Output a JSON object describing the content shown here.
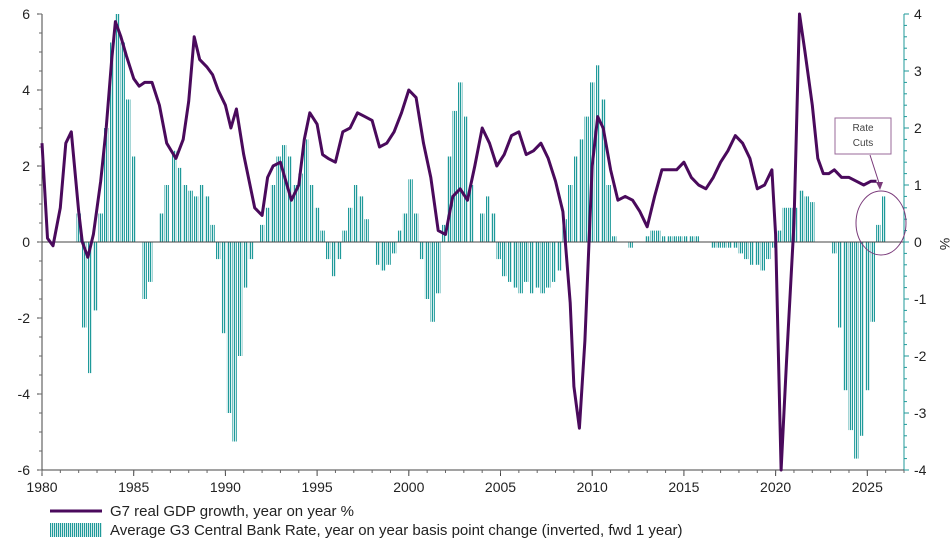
{
  "chart_data": {
    "type": "bar+line",
    "colors": {
      "gdp_line": "#4a0a5c",
      "rate_bars": "#1f9a9a",
      "annotation": "#7a3a7a"
    },
    "x_axis": {
      "range": [
        1980,
        2027
      ],
      "tick_labels": [
        "1980",
        "1985",
        "1990",
        "1995",
        "2000",
        "2005",
        "2010",
        "2015",
        "2020",
        "2025"
      ]
    },
    "y_left": {
      "range": [
        -6,
        6
      ],
      "tick_labels": [
        "-6",
        "-4",
        "-2",
        "0",
        "2",
        "4",
        "6"
      ]
    },
    "y_right": {
      "range": [
        -4,
        4
      ],
      "tick_labels": [
        "-4",
        "-3",
        "-2",
        "-1",
        "0",
        "1",
        "2",
        "3",
        "4"
      ],
      "unit_label": "%"
    },
    "grid": false,
    "legend_position": "bottom",
    "series": [
      {
        "name": "G7 real GDP growth, year on year %",
        "kind": "line",
        "axis": "left",
        "points": [
          [
            1980.0,
            2.6
          ],
          [
            1980.3,
            0.1
          ],
          [
            1980.6,
            -0.1
          ],
          [
            1981.0,
            0.9
          ],
          [
            1981.3,
            2.6
          ],
          [
            1981.6,
            2.9
          ],
          [
            1982.0,
            0.8
          ],
          [
            1982.2,
            0.0
          ],
          [
            1982.5,
            -0.4
          ],
          [
            1982.8,
            0.2
          ],
          [
            1983.2,
            1.6
          ],
          [
            1983.5,
            3.0
          ],
          [
            1983.8,
            4.8
          ],
          [
            1984.0,
            5.8
          ],
          [
            1984.3,
            5.4
          ],
          [
            1984.6,
            4.9
          ],
          [
            1985.0,
            4.3
          ],
          [
            1985.3,
            4.1
          ],
          [
            1985.6,
            4.2
          ],
          [
            1986.0,
            4.2
          ],
          [
            1986.4,
            3.6
          ],
          [
            1986.8,
            2.6
          ],
          [
            1987.3,
            2.2
          ],
          [
            1987.7,
            2.7
          ],
          [
            1988.0,
            3.7
          ],
          [
            1988.3,
            5.4
          ],
          [
            1988.6,
            4.8
          ],
          [
            1989.0,
            4.6
          ],
          [
            1989.3,
            4.4
          ],
          [
            1989.6,
            4.0
          ],
          [
            1990.0,
            3.6
          ],
          [
            1990.3,
            3.0
          ],
          [
            1990.6,
            3.5
          ],
          [
            1991.0,
            2.3
          ],
          [
            1991.3,
            1.6
          ],
          [
            1991.6,
            0.9
          ],
          [
            1992.0,
            0.7
          ],
          [
            1992.3,
            1.7
          ],
          [
            1992.6,
            2.0
          ],
          [
            1993.0,
            2.1
          ],
          [
            1993.3,
            1.6
          ],
          [
            1993.6,
            1.1
          ],
          [
            1994.0,
            1.5
          ],
          [
            1994.3,
            2.7
          ],
          [
            1994.6,
            3.4
          ],
          [
            1995.0,
            3.1
          ],
          [
            1995.3,
            2.3
          ],
          [
            1995.6,
            2.2
          ],
          [
            1996.0,
            2.1
          ],
          [
            1996.4,
            2.9
          ],
          [
            1996.8,
            3.0
          ],
          [
            1997.2,
            3.4
          ],
          [
            1997.6,
            3.3
          ],
          [
            1998.0,
            3.2
          ],
          [
            1998.4,
            2.5
          ],
          [
            1998.8,
            2.6
          ],
          [
            1999.2,
            2.9
          ],
          [
            1999.6,
            3.4
          ],
          [
            2000.0,
            4.0
          ],
          [
            2000.4,
            3.8
          ],
          [
            2000.8,
            2.6
          ],
          [
            2001.2,
            1.7
          ],
          [
            2001.6,
            0.3
          ],
          [
            2002.0,
            0.2
          ],
          [
            2002.4,
            1.2
          ],
          [
            2002.8,
            1.4
          ],
          [
            2003.2,
            1.1
          ],
          [
            2003.6,
            2.0
          ],
          [
            2004.0,
            3.0
          ],
          [
            2004.4,
            2.6
          ],
          [
            2004.8,
            2.0
          ],
          [
            2005.2,
            2.3
          ],
          [
            2005.6,
            2.8
          ],
          [
            2006.0,
            2.9
          ],
          [
            2006.4,
            2.3
          ],
          [
            2006.8,
            2.4
          ],
          [
            2007.2,
            2.6
          ],
          [
            2007.6,
            2.2
          ],
          [
            2008.0,
            1.6
          ],
          [
            2008.4,
            0.8
          ],
          [
            2008.8,
            -1.6
          ],
          [
            2009.0,
            -3.8
          ],
          [
            2009.3,
            -4.9
          ],
          [
            2009.6,
            -2.6
          ],
          [
            2010.0,
            2.0
          ],
          [
            2010.3,
            3.3
          ],
          [
            2010.6,
            3.0
          ],
          [
            2011.0,
            1.9
          ],
          [
            2011.4,
            1.1
          ],
          [
            2011.8,
            1.2
          ],
          [
            2012.2,
            1.1
          ],
          [
            2012.6,
            0.8
          ],
          [
            2013.0,
            0.4
          ],
          [
            2013.4,
            1.2
          ],
          [
            2013.8,
            1.9
          ],
          [
            2014.2,
            1.9
          ],
          [
            2014.6,
            1.9
          ],
          [
            2015.0,
            2.1
          ],
          [
            2015.4,
            1.7
          ],
          [
            2015.8,
            1.5
          ],
          [
            2016.2,
            1.4
          ],
          [
            2016.6,
            1.7
          ],
          [
            2017.0,
            2.1
          ],
          [
            2017.4,
            2.4
          ],
          [
            2017.8,
            2.8
          ],
          [
            2018.2,
            2.6
          ],
          [
            2018.6,
            2.2
          ],
          [
            2019.0,
            1.4
          ],
          [
            2019.4,
            1.5
          ],
          [
            2019.8,
            1.9
          ],
          [
            2020.0,
            0.2
          ],
          [
            2020.3,
            -6.0
          ],
          [
            2020.6,
            -3.1
          ],
          [
            2021.0,
            0.5
          ],
          [
            2021.3,
            7.0
          ],
          [
            2021.6,
            5.0
          ],
          [
            2022.0,
            3.6
          ],
          [
            2022.3,
            2.2
          ],
          [
            2022.6,
            1.8
          ],
          [
            2022.9,
            1.8
          ],
          [
            2023.2,
            1.9
          ],
          [
            2023.6,
            1.7
          ],
          [
            2024.0,
            1.7
          ],
          [
            2024.4,
            1.6
          ],
          [
            2024.8,
            1.5
          ],
          [
            2025.2,
            1.6
          ],
          [
            2025.5,
            1.6
          ]
        ]
      },
      {
        "name": "Average G3 Central Bank Rate, year on year basis point change (inverted, fwd 1 year)",
        "kind": "bar",
        "axis": "right",
        "points": [
          [
            1982.0,
            0.5
          ],
          [
            1982.3,
            -1.5
          ],
          [
            1982.6,
            -2.3
          ],
          [
            1982.9,
            -1.2
          ],
          [
            1983.2,
            0.5
          ],
          [
            1983.5,
            2.0
          ],
          [
            1983.8,
            3.5
          ],
          [
            1984.1,
            4.0
          ],
          [
            1984.4,
            3.5
          ],
          [
            1984.7,
            2.5
          ],
          [
            1985.0,
            1.5
          ],
          [
            1985.3,
            0.0
          ],
          [
            1985.6,
            -1.0
          ],
          [
            1985.9,
            -0.7
          ],
          [
            1986.2,
            0.0
          ],
          [
            1986.5,
            0.5
          ],
          [
            1986.8,
            1.0
          ],
          [
            1987.2,
            1.6
          ],
          [
            1987.5,
            1.3
          ],
          [
            1987.8,
            1.0
          ],
          [
            1988.1,
            0.9
          ],
          [
            1988.4,
            0.8
          ],
          [
            1988.7,
            1.0
          ],
          [
            1989.0,
            0.8
          ],
          [
            1989.3,
            0.3
          ],
          [
            1989.6,
            -0.3
          ],
          [
            1989.9,
            -1.6
          ],
          [
            1990.2,
            -3.0
          ],
          [
            1990.5,
            -3.5
          ],
          [
            1990.8,
            -2.0
          ],
          [
            1991.1,
            -0.8
          ],
          [
            1991.4,
            -0.3
          ],
          [
            1991.7,
            0.0
          ],
          [
            1992.0,
            0.3
          ],
          [
            1992.3,
            0.6
          ],
          [
            1992.6,
            1.0
          ],
          [
            1992.9,
            1.5
          ],
          [
            1993.2,
            1.7
          ],
          [
            1993.5,
            1.5
          ],
          [
            1993.8,
            1.0
          ],
          [
            1994.1,
            1.2
          ],
          [
            1994.4,
            1.8
          ],
          [
            1994.7,
            1.0
          ],
          [
            1995.0,
            0.6
          ],
          [
            1995.3,
            0.2
          ],
          [
            1995.6,
            -0.3
          ],
          [
            1995.9,
            -0.6
          ],
          [
            1996.2,
            -0.3
          ],
          [
            1996.5,
            0.2
          ],
          [
            1996.8,
            0.6
          ],
          [
            1997.1,
            1.0
          ],
          [
            1997.4,
            0.8
          ],
          [
            1997.7,
            0.4
          ],
          [
            1998.0,
            0.0
          ],
          [
            1998.3,
            -0.4
          ],
          [
            1998.6,
            -0.5
          ],
          [
            1998.9,
            -0.4
          ],
          [
            1999.2,
            -0.2
          ],
          [
            1999.5,
            0.2
          ],
          [
            1999.8,
            0.5
          ],
          [
            2000.1,
            1.1
          ],
          [
            2000.4,
            0.5
          ],
          [
            2000.7,
            -0.3
          ],
          [
            2001.0,
            -1.0
          ],
          [
            2001.3,
            -1.4
          ],
          [
            2001.6,
            -0.9
          ],
          [
            2001.9,
            0.3
          ],
          [
            2002.2,
            1.5
          ],
          [
            2002.5,
            2.3
          ],
          [
            2002.8,
            2.8
          ],
          [
            2003.1,
            2.2
          ],
          [
            2003.4,
            1.0
          ],
          [
            2003.7,
            0.0
          ],
          [
            2004.0,
            0.5
          ],
          [
            2004.3,
            0.8
          ],
          [
            2004.6,
            0.5
          ],
          [
            2004.9,
            -0.3
          ],
          [
            2005.2,
            -0.6
          ],
          [
            2005.5,
            -0.7
          ],
          [
            2005.8,
            -0.8
          ],
          [
            2006.1,
            -0.9
          ],
          [
            2006.4,
            -0.7
          ],
          [
            2006.7,
            -0.9
          ],
          [
            2007.0,
            -0.8
          ],
          [
            2007.3,
            -0.9
          ],
          [
            2007.6,
            -0.8
          ],
          [
            2007.9,
            -0.7
          ],
          [
            2008.2,
            -0.5
          ],
          [
            2008.5,
            0.4
          ],
          [
            2008.8,
            1.0
          ],
          [
            2009.1,
            1.5
          ],
          [
            2009.4,
            1.8
          ],
          [
            2009.7,
            2.2
          ],
          [
            2010.0,
            2.8
          ],
          [
            2010.3,
            3.1
          ],
          [
            2010.6,
            2.5
          ],
          [
            2010.9,
            1.0
          ],
          [
            2011.2,
            0.1
          ],
          [
            2011.5,
            0.0
          ],
          [
            2011.8,
            0.0
          ],
          [
            2012.1,
            -0.1
          ],
          [
            2012.4,
            0.0
          ],
          [
            2012.7,
            0.0
          ],
          [
            2013.0,
            0.1
          ],
          [
            2013.3,
            0.2
          ],
          [
            2013.6,
            0.2
          ],
          [
            2013.9,
            0.1
          ],
          [
            2014.2,
            0.1
          ],
          [
            2014.5,
            0.1
          ],
          [
            2014.8,
            0.1
          ],
          [
            2015.1,
            0.1
          ],
          [
            2015.4,
            0.1
          ],
          [
            2015.7,
            0.1
          ],
          [
            2016.0,
            0.0
          ],
          [
            2016.3,
            0.0
          ],
          [
            2016.6,
            -0.1
          ],
          [
            2016.9,
            -0.1
          ],
          [
            2017.2,
            -0.1
          ],
          [
            2017.5,
            -0.1
          ],
          [
            2017.8,
            -0.1
          ],
          [
            2018.1,
            -0.2
          ],
          [
            2018.4,
            -0.3
          ],
          [
            2018.7,
            -0.4
          ],
          [
            2019.0,
            -0.4
          ],
          [
            2019.3,
            -0.5
          ],
          [
            2019.6,
            -0.3
          ],
          [
            2019.9,
            -0.1
          ],
          [
            2020.2,
            0.2
          ],
          [
            2020.5,
            0.6
          ],
          [
            2020.8,
            0.6
          ],
          [
            2021.1,
            0.6
          ],
          [
            2021.4,
            0.9
          ],
          [
            2021.7,
            0.8
          ],
          [
            2022.0,
            0.7
          ],
          [
            2022.3,
            0.0
          ],
          [
            2022.6,
            0.0
          ],
          [
            2022.9,
            0.0
          ],
          [
            2023.2,
            -0.2
          ],
          [
            2023.5,
            -1.5
          ],
          [
            2023.8,
            -2.6
          ],
          [
            2024.1,
            -3.3
          ],
          [
            2024.4,
            -3.8
          ],
          [
            2024.7,
            -3.4
          ],
          [
            2025.0,
            -2.6
          ],
          [
            2025.3,
            -1.4
          ],
          [
            2025.6,
            0.3
          ],
          [
            2025.9,
            0.8
          ]
        ]
      }
    ],
    "annotations": [
      {
        "lines": [
          "Rate",
          "Cuts"
        ]
      }
    ]
  }
}
